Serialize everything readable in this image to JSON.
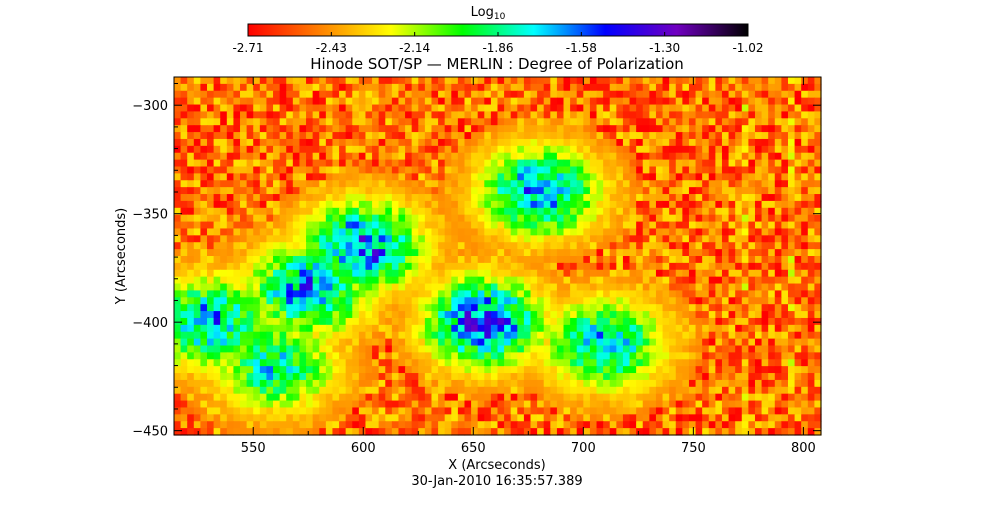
{
  "colorbar": {
    "label_base": "Log",
    "label_sub": "10",
    "ticks": [
      "-2.71",
      "-2.43",
      "-2.14",
      "-1.86",
      "-1.58",
      "-1.30",
      "-1.02"
    ],
    "range": [
      -2.71,
      -1.02
    ],
    "colormap": [
      "#ff0000",
      "#ff8000",
      "#ffff00",
      "#00ff00",
      "#00ffff",
      "#0000ff",
      "#7000c0",
      "#000000"
    ]
  },
  "chart_data": {
    "type": "heatmap",
    "title": "Hinode SOT/SP — MERLIN : Degree of Polarization",
    "xlabel": "X (Arcseconds)",
    "ylabel": "Y (Arcseconds)",
    "xlim": [
      514,
      808
    ],
    "ylim": [
      -452,
      -287
    ],
    "xticks": [
      550,
      600,
      650,
      700,
      750,
      800
    ],
    "yticks": [
      -300,
      -350,
      -400,
      -450
    ],
    "value_unit": "log10 degree of polarization",
    "value_range": [
      -2.71,
      -1.02
    ],
    "background_level": -2.5,
    "high_polarization_regions": [
      {
        "x_center": 600,
        "y_center": -365,
        "peak": -1.35
      },
      {
        "x_center": 655,
        "y_center": -400,
        "peak": -1.3
      },
      {
        "x_center": 680,
        "y_center": -340,
        "peak": -1.45
      },
      {
        "x_center": 575,
        "y_center": -385,
        "peak": -1.45
      },
      {
        "x_center": 530,
        "y_center": -400,
        "peak": -1.5
      },
      {
        "x_center": 710,
        "y_center": -410,
        "peak": -1.55
      },
      {
        "x_center": 560,
        "y_center": -420,
        "peak": -1.65
      }
    ]
  },
  "timestamp": "30-Jan-2010 16:35:57.389"
}
